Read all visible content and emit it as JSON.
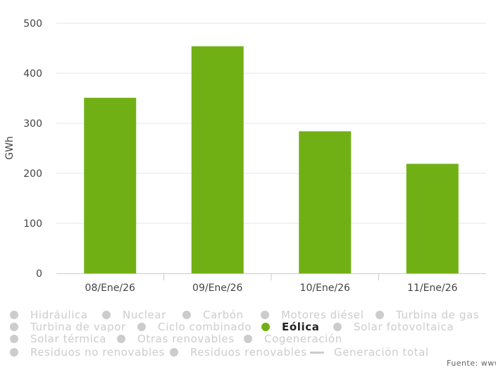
{
  "chart_data": {
    "type": "bar",
    "categories": [
      "08/Ene/26",
      "09/Ene/26",
      "10/Ene/26",
      "11/Ene/26"
    ],
    "series": [
      {
        "name": "Eólica",
        "values": [
          351,
          454,
          284,
          219
        ],
        "color": "#71b015"
      }
    ],
    "ylabel": "GWh",
    "ylim": [
      0,
      500
    ],
    "yticks": [
      0,
      100,
      200,
      300,
      400,
      500
    ],
    "grid": true,
    "legend_position": "bottom"
  },
  "legend": {
    "items": [
      {
        "label": "Hidráulica",
        "active": false
      },
      {
        "label": "Nuclear",
        "active": false
      },
      {
        "label": "Carbón",
        "active": false
      },
      {
        "label": "Motores diésel",
        "active": false
      },
      {
        "label": "Turbina de gas",
        "active": false
      },
      {
        "label": "Turbina de vapor",
        "active": false
      },
      {
        "label": "Ciclo combinado",
        "active": false
      },
      {
        "label": "Eólica",
        "active": true
      },
      {
        "label": "Solar fotovoltaica",
        "active": false
      },
      {
        "label": "Solar térmica",
        "active": false
      },
      {
        "label": "Otras renovables",
        "active": false
      },
      {
        "label": "Cogeneración",
        "active": false
      },
      {
        "label": "Residuos no renovables",
        "active": false
      },
      {
        "label": "Residuos renovables",
        "active": false
      },
      {
        "label": "Generación total",
        "active": false,
        "symbol": "line"
      }
    ]
  },
  "source": "Fuente: www"
}
